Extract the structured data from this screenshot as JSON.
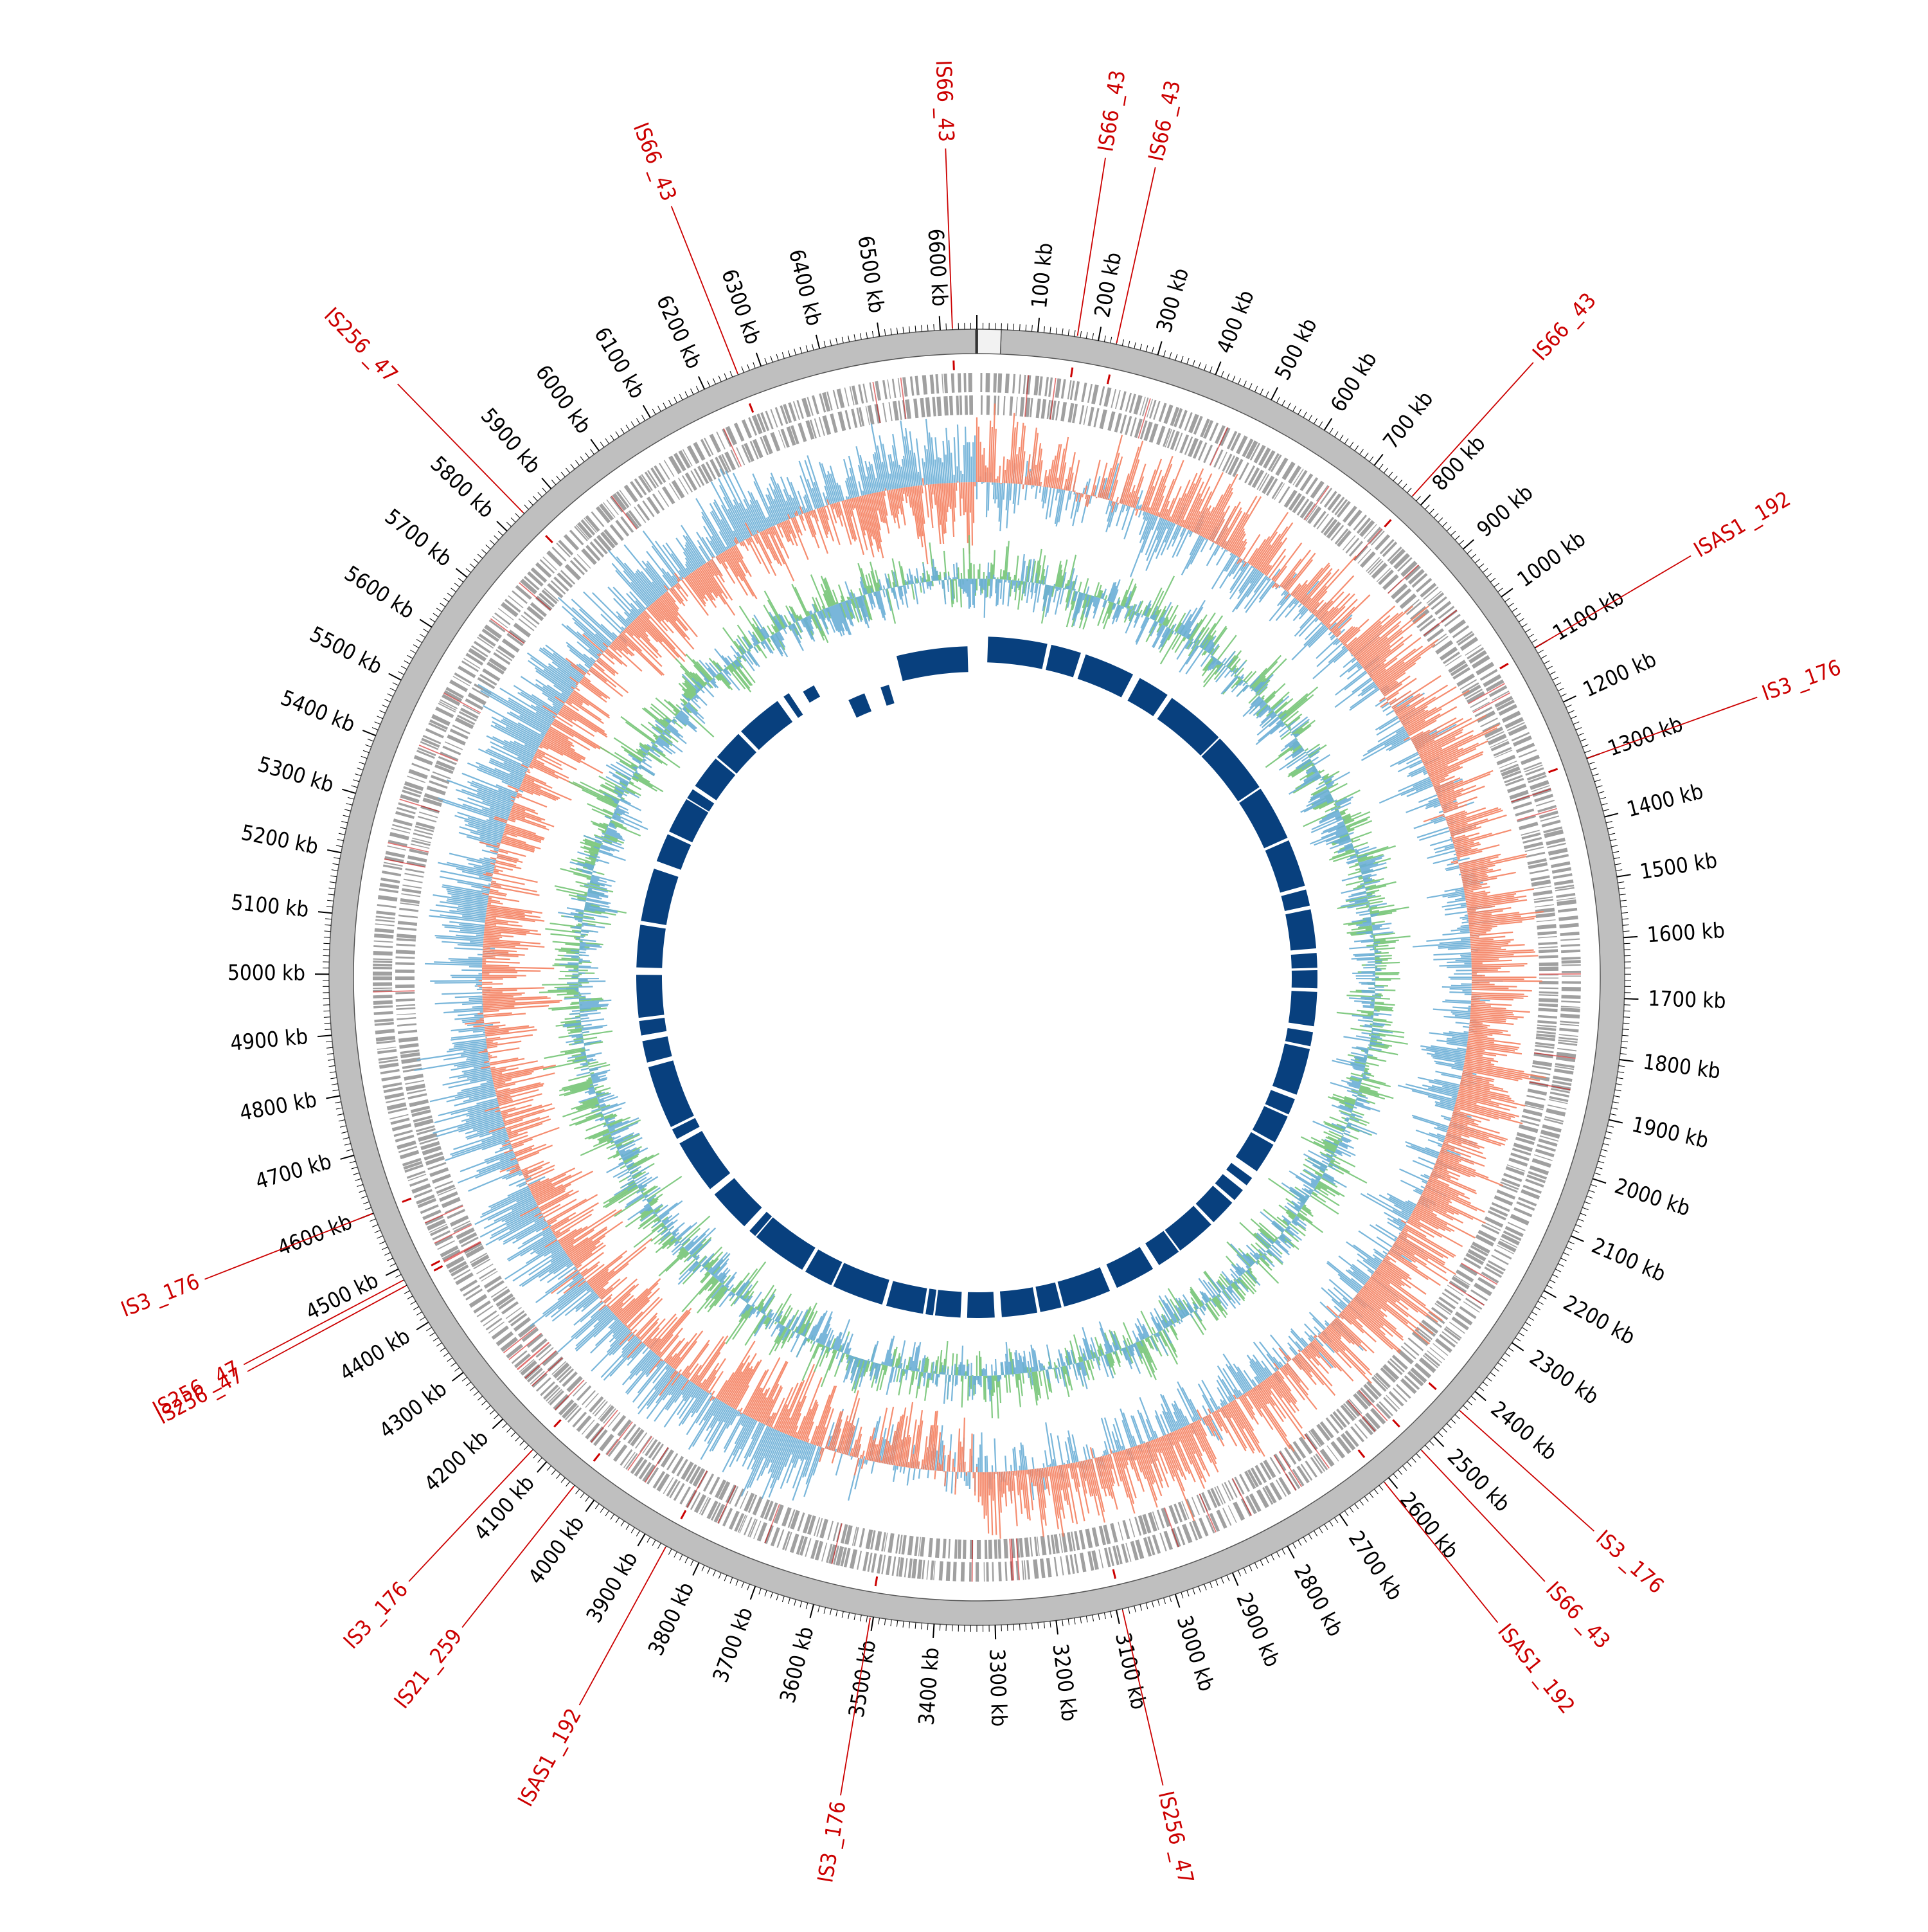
{
  "genome_map": {
    "length_kb": 6660,
    "tick_unit": "kb",
    "tick_labels": [
      "100 kb",
      "200 kb",
      "300 kb",
      "400 kb",
      "500 kb",
      "600 kb",
      "700 kb",
      "800 kb",
      "900 kb",
      "1000 kb",
      "1100 kb",
      "1200 kb",
      "1300 kb",
      "1400 kb",
      "1500 kb",
      "1600 kb",
      "1700 kb",
      "1800 kb",
      "1900 kb",
      "2000 kb",
      "2100 kb",
      "2200 kb",
      "2300 kb",
      "2400 kb",
      "2500 kb",
      "2600 kb",
      "2700 kb",
      "2800 kb",
      "2900 kb",
      "3000 kb",
      "3100 kb",
      "3200 kb",
      "3300 kb",
      "3400 kb",
      "3500 kb",
      "3600 kb",
      "3700 kb",
      "3800 kb",
      "3900 kb",
      "4000 kb",
      "4100 kb",
      "4200 kb",
      "4300 kb",
      "4400 kb",
      "4500 kb",
      "4600 kb",
      "4700 kb",
      "4800 kb",
      "4900 kb",
      "5000 kb",
      "5100 kb",
      "5200 kb",
      "5300 kb",
      "5400 kb",
      "5500 kb",
      "5600 kb",
      "5700 kb",
      "5800 kb",
      "5900 kb",
      "6000 kb",
      "6100 kb",
      "6200 kb",
      "6300 kb",
      "6400 kb",
      "6500 kb",
      "6600 kb"
    ],
    "insertion_sequences": [
      {
        "label": "IS66 _43",
        "kb": 6620
      },
      {
        "label": "IS66 _43",
        "kb": 165
      },
      {
        "label": "IS66 _43",
        "kb": 230
      },
      {
        "label": "IS66 _43",
        "kb": 780
      },
      {
        "label": "ISAS1 _192",
        "kb": 1100
      },
      {
        "label": "IS3 _176",
        "kb": 1300
      },
      {
        "label": "IS3 _176",
        "kb": 2440
      },
      {
        "label": "IS66 _43",
        "kb": 2530
      },
      {
        "label": "ISAS1 _192",
        "kb": 2610
      },
      {
        "label": "IS256 _47",
        "kb": 3090
      },
      {
        "label": "IS3 _176",
        "kb": 3505
      },
      {
        "label": "ISAS1 _192",
        "kb": 3860
      },
      {
        "label": "IS21 _259",
        "kb": 4040
      },
      {
        "label": "IS3 _176",
        "kb": 4130
      },
      {
        "label": "IS256 _47",
        "kb": 4480
      },
      {
        "label": "IS256 _47",
        "kb": 4470
      },
      {
        "label": "IS3 _176",
        "kb": 4600
      },
      {
        "label": "IS256 _47",
        "kb": 5840
      },
      {
        "label": "IS66 _43",
        "kb": 6260
      }
    ],
    "colors": {
      "backbone": "#bfbfbf",
      "gene_blocks": "#a0a0a0",
      "is_marker": "#cc0000",
      "track_blue": "#6aaed6",
      "track_orange": "#f4805f",
      "track_green": "#74c476",
      "homology": "#08407e"
    }
  }
}
